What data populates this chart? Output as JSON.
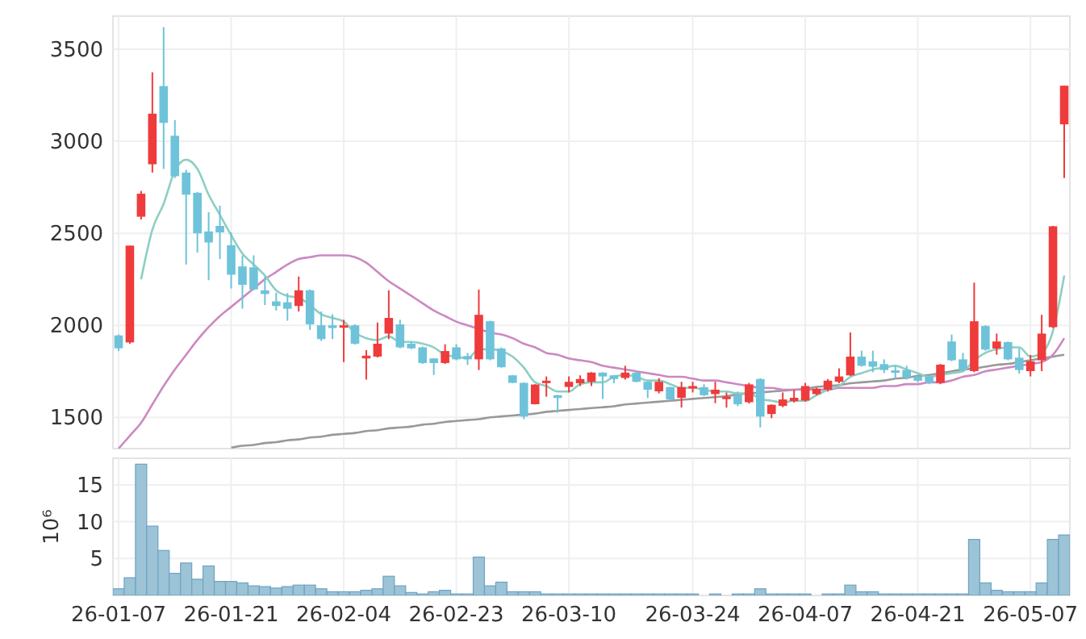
{
  "chart_data": [
    {
      "type": "candlestick",
      "categories": [
        null,
        null,
        null,
        null,
        null,
        null,
        null,
        null,
        null,
        null,
        null,
        null,
        null,
        null,
        null,
        null,
        null,
        null,
        null,
        null,
        null,
        null,
        null,
        null,
        null,
        null,
        null,
        null,
        null,
        null,
        null,
        null,
        null,
        null,
        null,
        null,
        null,
        null,
        null,
        null,
        null,
        null,
        null,
        null,
        null,
        null,
        null,
        null,
        null,
        null,
        null,
        null,
        null,
        null,
        null,
        null,
        null,
        null,
        null,
        null,
        null,
        null,
        null,
        null,
        null,
        null,
        null,
        null,
        null,
        null,
        null,
        null,
        null,
        null,
        null,
        null,
        null,
        null,
        null,
        null,
        null,
        null,
        null,
        null,
        null
      ],
      "tick_labels": "y",
      "ylim": [
        1330,
        3680
      ],
      "yticks": [
        1500,
        2000,
        2500,
        3000,
        3500
      ],
      "grid": true,
      "series": [
        {
          "type": "line",
          "color": "#999999",
          "values": [
            null,
            null,
            null,
            null,
            null,
            null,
            null,
            null,
            null,
            null,
            1335,
            1345,
            1350,
            1360,
            1365,
            1375,
            1380,
            1390,
            1395,
            1405,
            1410,
            1415,
            1425,
            1430,
            1440,
            1445,
            1450,
            1460,
            1465,
            1475,
            1480,
            1485,
            1490,
            1500,
            1505,
            1510,
            1515,
            1520,
            1530,
            1535,
            1540,
            1545,
            1550,
            1555,
            1560,
            1570,
            1575,
            1580,
            1585,
            1590,
            1595,
            1600,
            1605,
            1610,
            1615,
            1625,
            1630,
            1635,
            1640,
            1645,
            1650,
            1655,
            1665,
            1670,
            1675,
            1685,
            1690,
            1695,
            1700,
            1710,
            1715,
            1725,
            1730,
            1740,
            1750,
            1760,
            1765,
            1775,
            1785,
            1790,
            1800,
            1810,
            1820,
            1830,
            1840
          ]
        },
        {
          "type": "line",
          "color": "#cc88c2",
          "values": [
            1330,
            1400,
            1470,
            1570,
            1670,
            1760,
            1840,
            1920,
            1990,
            2050,
            2100,
            2150,
            2200,
            2250,
            2290,
            2330,
            2360,
            2370,
            2380,
            2380,
            2380,
            2370,
            2340,
            2290,
            2240,
            2200,
            2160,
            2120,
            2080,
            2050,
            2020,
            2000,
            1980,
            1960,
            1950,
            1930,
            1900,
            1880,
            1850,
            1840,
            1820,
            1810,
            1800,
            1780,
            1770,
            1760,
            1750,
            1740,
            1730,
            1720,
            1720,
            1710,
            1700,
            1700,
            1690,
            1680,
            1670,
            1660,
            1660,
            1650,
            1650,
            1650,
            1650,
            1650,
            1660,
            1660,
            1660,
            1660,
            1670,
            1670,
            1680,
            1680,
            1690,
            1690,
            1700,
            1720,
            1730,
            1750,
            1760,
            1770,
            1780,
            1790,
            1800,
            1840,
            1930
          ]
        },
        {
          "type": "line",
          "color": "#8ccfc2",
          "values": [
            null,
            null,
            2250,
            2520,
            2660,
            2840,
            2900,
            2850,
            2710,
            2600,
            2490,
            2390,
            2330,
            2270,
            2190,
            2160,
            2150,
            2110,
            2060,
            2040,
            2020,
            1960,
            1930,
            1920,
            1940,
            1910,
            1910,
            1900,
            1880,
            1840,
            1830,
            1820,
            1870,
            1870,
            1860,
            1830,
            1770,
            1690,
            1670,
            1640,
            1640,
            1680,
            1690,
            1690,
            1720,
            1730,
            1720,
            1700,
            1700,
            1680,
            1660,
            1660,
            1650,
            1640,
            1640,
            1630,
            1630,
            1600,
            1590,
            1580,
            1590,
            1590,
            1620,
            1650,
            1670,
            1720,
            1740,
            1760,
            1770,
            1780,
            1760,
            1740,
            1720,
            1730,
            1740,
            1750,
            1810,
            1850,
            1870,
            1880,
            1880,
            1830,
            1850,
            1970,
            2270
          ]
        },
        {
          "type": "candlestick",
          "ohlc": [
            [
              1945,
              1950,
              1860,
              1875
            ],
            [
              1907,
              2433,
              1900,
              2433
            ],
            [
              2590,
              2730,
              2575,
              2715
            ],
            [
              2875,
              3375,
              2830,
              3150
            ],
            [
              3300,
              3620,
              2850,
              3100
            ],
            [
              3030,
              3115,
              2800,
              2810
            ],
            [
              2830,
              2845,
              2330,
              2710
            ],
            [
              2720,
              2725,
              2395,
              2500
            ],
            [
              2510,
              2615,
              2245,
              2450
            ],
            [
              2540,
              2650,
              2360,
              2505
            ],
            [
              2435,
              2505,
              2200,
              2275
            ],
            [
              2320,
              2380,
              2090,
              2220
            ],
            [
              2315,
              2380,
              2190,
              2195
            ],
            [
              2190,
              2265,
              2110,
              2170
            ],
            [
              2130,
              2177,
              2080,
              2105
            ],
            [
              2125,
              2175,
              2025,
              2090
            ],
            [
              2105,
              2265,
              2075,
              2190
            ],
            [
              2190,
              2195,
              1975,
              2005
            ],
            [
              2000,
              2075,
              1915,
              1925
            ],
            [
              2000,
              2060,
              1925,
              1985
            ],
            [
              1995,
              2030,
              1800,
              2000
            ],
            [
              2000,
              2005,
              1895,
              1900
            ],
            [
              1820,
              1865,
              1705,
              1835
            ],
            [
              1830,
              2015,
              1825,
              1900
            ],
            [
              1955,
              2190,
              1925,
              2040
            ],
            [
              2005,
              2030,
              1875,
              1880
            ],
            [
              1900,
              1910,
              1870,
              1875
            ],
            [
              1880,
              1885,
              1790,
              1795
            ],
            [
              1820,
              1822,
              1730,
              1795
            ],
            [
              1795,
              1897,
              1790,
              1860
            ],
            [
              1880,
              1897,
              1810,
              1815
            ],
            [
              1833,
              1850,
              1785,
              1815
            ],
            [
              1815,
              2194,
              1757,
              2057
            ],
            [
              2022,
              2025,
              1810,
              1815
            ],
            [
              1874,
              1880,
              1770,
              1772
            ],
            [
              1728,
              1730,
              1685,
              1687
            ],
            [
              1687,
              1690,
              1490,
              1504
            ],
            [
              1571,
              1680,
              1570,
              1678
            ],
            [
              1688,
              1722,
              1612,
              1699
            ],
            [
              1620,
              1622,
              1525,
              1605
            ],
            [
              1665,
              1722,
              1635,
              1693
            ],
            [
              1685,
              1728,
              1670,
              1708
            ],
            [
              1693,
              1745,
              1670,
              1743
            ],
            [
              1743,
              1745,
              1600,
              1722
            ],
            [
              1728,
              1730,
              1685,
              1708
            ],
            [
              1714,
              1780,
              1705,
              1743
            ],
            [
              1743,
              1750,
              1690,
              1693
            ],
            [
              1693,
              1695,
              1605,
              1650
            ],
            [
              1641,
              1713,
              1630,
              1693
            ],
            [
              1664,
              1666,
              1590,
              1597
            ],
            [
              1606,
              1693,
              1553,
              1664
            ],
            [
              1660,
              1693,
              1635,
              1670
            ],
            [
              1664,
              1680,
              1615,
              1620
            ],
            [
              1626,
              1693,
              1577,
              1650
            ],
            [
              1600,
              1635,
              1553,
              1612
            ],
            [
              1620,
              1640,
              1560,
              1571
            ],
            [
              1582,
              1687,
              1575,
              1679
            ],
            [
              1708,
              1712,
              1445,
              1504
            ],
            [
              1518,
              1570,
              1495,
              1568
            ],
            [
              1562,
              1635,
              1555,
              1597
            ],
            [
              1588,
              1650,
              1580,
              1606
            ],
            [
              1591,
              1687,
              1585,
              1670
            ],
            [
              1626,
              1660,
              1620,
              1655
            ],
            [
              1650,
              1708,
              1640,
              1699
            ],
            [
              1693,
              1766,
              1685,
              1722
            ],
            [
              1728,
              1961,
              1725,
              1830
            ],
            [
              1830,
              1862,
              1775,
              1780
            ],
            [
              1804,
              1862,
              1745,
              1775
            ],
            [
              1789,
              1815,
              1740,
              1757
            ],
            [
              1755,
              1780,
              1708,
              1748
            ],
            [
              1757,
              1780,
              1705,
              1716
            ],
            [
              1722,
              1725,
              1690,
              1699
            ],
            [
              1722,
              1725,
              1680,
              1687
            ],
            [
              1687,
              1790,
              1680,
              1786
            ],
            [
              1912,
              1950,
              1805,
              1810
            ],
            [
              1815,
              1850,
              1750,
              1757
            ],
            [
              1751,
              2232,
              1745,
              2022
            ],
            [
              1996,
              2000,
              1862,
              1868
            ],
            [
              1874,
              1955,
              1840,
              1912
            ],
            [
              1909,
              1912,
              1810,
              1815
            ],
            [
              1824,
              1874,
              1737,
              1757
            ],
            [
              1751,
              1839,
              1722,
              1804
            ],
            [
              1810,
              2057,
              1751,
              1955
            ],
            [
              1990,
              2540,
              1985,
              2538
            ],
            [
              3092,
              3302,
              2800,
              3302
            ]
          ],
          "colors": [
            "#6ec3da",
            "#ef3b3b",
            "#ef3b3b",
            "#ef3b3b",
            "#6ec3da",
            "#6ec3da",
            "#6ec3da",
            "#6ec3da",
            "#6ec3da",
            "#6ec3da",
            "#6ec3da",
            "#6ec3da",
            "#6ec3da",
            "#6ec3da",
            "#6ec3da",
            "#6ec3da",
            "#ef3b3b",
            "#6ec3da",
            "#6ec3da",
            "#6ec3da",
            "#ef3b3b",
            "#6ec3da",
            "#ef3b3b",
            "#ef3b3b",
            "#ef3b3b",
            "#6ec3da",
            "#6ec3da",
            "#6ec3da",
            "#6ec3da",
            "#ef3b3b",
            "#6ec3da",
            "#6ec3da",
            "#ef3b3b",
            "#6ec3da",
            "#6ec3da",
            "#6ec3da",
            "#6ec3da",
            "#ef3b3b",
            "#ef3b3b",
            "#6ec3da",
            "#ef3b3b",
            "#ef3b3b",
            "#ef3b3b",
            "#6ec3da",
            "#6ec3da",
            "#ef3b3b",
            "#6ec3da",
            "#6ec3da",
            "#ef3b3b",
            "#6ec3da",
            "#ef3b3b",
            "#ef3b3b",
            "#6ec3da",
            "#ef3b3b",
            "#ef3b3b",
            "#6ec3da",
            "#ef3b3b",
            "#6ec3da",
            "#ef3b3b",
            "#ef3b3b",
            "#ef3b3b",
            "#ef3b3b",
            "#ef3b3b",
            "#ef3b3b",
            "#ef3b3b",
            "#ef3b3b",
            "#6ec3da",
            "#6ec3da",
            "#6ec3da",
            "#6ec3da",
            "#6ec3da",
            "#6ec3da",
            "#6ec3da",
            "#ef3b3b",
            "#6ec3da",
            "#6ec3da",
            "#ef3b3b",
            "#6ec3da",
            "#ef3b3b",
            "#6ec3da",
            "#6ec3da",
            "#ef3b3b",
            "#ef3b3b",
            "#ef3b3b",
            "#ef3b3b"
          ]
        }
      ]
    },
    {
      "type": "bar",
      "categories": [
        "26-01-07",
        null,
        null,
        null,
        null,
        null,
        null,
        null,
        null,
        null,
        "26-01-21",
        null,
        null,
        null,
        null,
        null,
        null,
        null,
        null,
        null,
        "26-02-04",
        null,
        null,
        null,
        null,
        null,
        null,
        null,
        null,
        null,
        "26-02-23",
        null,
        null,
        null,
        null,
        null,
        null,
        null,
        null,
        null,
        "26-03-10",
        null,
        null,
        null,
        null,
        null,
        null,
        null,
        null,
        null,
        null,
        "26-03-24",
        null,
        null,
        null,
        null,
        null,
        null,
        null,
        null,
        null,
        "26-04-07",
        null,
        null,
        null,
        null,
        null,
        null,
        null,
        null,
        null,
        "26-04-21",
        null,
        null,
        null,
        null,
        null,
        null,
        null,
        null,
        null,
        "26-05-07",
        null,
        null,
        null
      ],
      "ylabel": "10⁶",
      "ylim": [
        0,
        18.6
      ],
      "yticks": [
        5,
        10,
        15
      ],
      "grid": true,
      "color": "#9cc3d6",
      "values": [
        0.9,
        2.4,
        17.8,
        9.4,
        6.1,
        3.0,
        4.4,
        2.2,
        4.0,
        1.9,
        1.9,
        1.7,
        1.3,
        1.2,
        1.0,
        1.2,
        1.4,
        1.4,
        0.9,
        0.5,
        0.5,
        0.5,
        0.7,
        0.9,
        2.6,
        1.3,
        0.4,
        0.2,
        0.5,
        0.7,
        0.2,
        0.2,
        5.2,
        1.3,
        1.8,
        0.5,
        0.5,
        0.5,
        0.2,
        0.2,
        0.2,
        0.2,
        0.2,
        0.2,
        0.2,
        0.2,
        0.2,
        0.2,
        0.2,
        0.2,
        0.2,
        0.2,
        0,
        0.2,
        0,
        0.2,
        0.2,
        0.9,
        0.2,
        0.2,
        0.2,
        0.2,
        0,
        0.2,
        0.2,
        1.4,
        0.5,
        0.5,
        0.2,
        0.2,
        0.2,
        0.2,
        0.2,
        0.2,
        0.2,
        0.2,
        7.6,
        1.7,
        0.7,
        0.5,
        0.5,
        0.5,
        1.7,
        7.6,
        8.2
      ]
    }
  ]
}
